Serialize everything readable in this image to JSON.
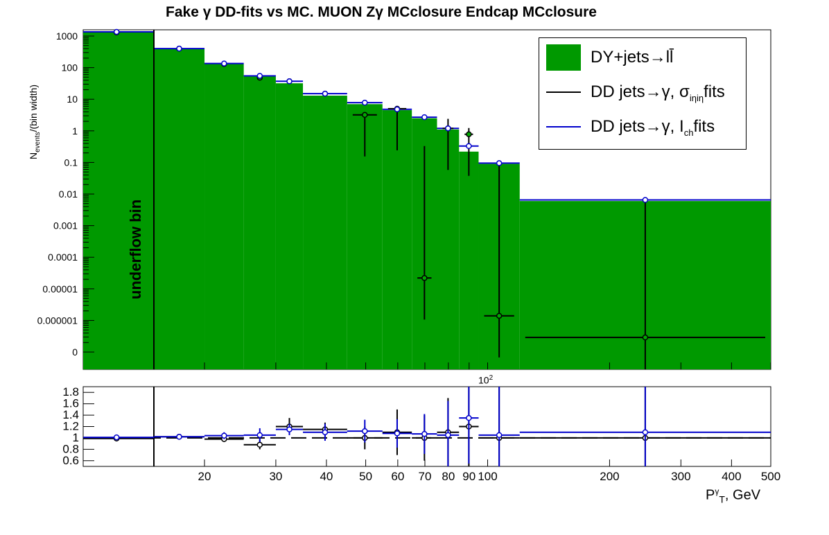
{
  "title": "Fake γ DD-fits vs MC. MUON Zγ MCclosure Endcap MCclosure",
  "ylabel": {
    "main": "N",
    "sub": "events",
    "rest": "/(bin width)"
  },
  "xlabel": {
    "p": "P",
    "sup": "γ",
    "sub": "T",
    "rest": ", GeV"
  },
  "underflow_label": "underflow bin",
  "x_exponent_label": "10",
  "x_exponent_sup": "2",
  "legend": [
    {
      "label": "DY+jets→ll̄",
      "kind": "fill",
      "color": "#009900"
    },
    {
      "label": "DD jets→γ, σ",
      "sub": "iηiη",
      "tail": " fits",
      "kind": "line",
      "color": "#000000"
    },
    {
      "label": "DD jets→γ, I",
      "sub": "ch",
      "tail": " fits",
      "kind": "line",
      "color": "#0000cc"
    }
  ],
  "chart_data": [
    {
      "type": "bar",
      "panel": "main",
      "y_scale": "log",
      "ytick_labels": [
        "0",
        "0.000001",
        "0.00001",
        "0.0001",
        "0.001",
        "0.01",
        "0.1",
        "1",
        "10",
        "100",
        "1000"
      ],
      "xtick_labels": [
        "20",
        "30",
        "40",
        "50",
        "60",
        "70",
        "80",
        "90",
        "100",
        "200",
        "300",
        "400",
        "500"
      ],
      "xlim": [
        12,
        500
      ],
      "bins": [
        [
          12,
          15
        ],
        [
          15,
          20
        ],
        [
          20,
          25
        ],
        [
          25,
          30
        ],
        [
          30,
          35
        ],
        [
          35,
          45
        ],
        [
          45,
          55
        ],
        [
          55,
          65
        ],
        [
          65,
          75
        ],
        [
          75,
          85
        ],
        [
          85,
          95
        ],
        [
          95,
          120
        ],
        [
          120,
          500
        ]
      ],
      "series": [
        {
          "name": "DY+jets→ll̄",
          "values": [
            1300,
            390,
            130,
            52,
            32,
            13,
            7,
            4.5,
            2.5,
            1.1,
            0.22,
            0.09,
            0.006
          ]
        },
        {
          "name": "DD jets→γ, σ iηiη fits",
          "values": [
            1300,
            400,
            130,
            48,
            37,
            15,
            3.2,
            5.0,
            2.2e-05,
            1.2,
            0.78,
            1.4e-06,
            2.9e-07
          ],
          "yerr_up": [
            0,
            0,
            0,
            0,
            0,
            0,
            0.6,
            0.8,
            0.33,
            1.2,
            0.45,
            0.1,
            0.0065
          ]
        },
        {
          "name": "DD jets→γ, I ch fits",
          "values": [
            1350,
            400,
            135,
            55,
            37,
            15,
            7.8,
            4.8,
            2.7,
            1.2,
            0.33,
            0.095,
            0.0065
          ],
          "yerr_up": [
            0,
            0,
            0,
            0,
            0,
            0,
            0,
            0,
            0,
            0,
            0,
            0,
            0
          ]
        }
      ]
    },
    {
      "type": "scatter",
      "panel": "ratio",
      "ylim": [
        0.5,
        1.9
      ],
      "ytick_labels": [
        "0.6",
        "0.8",
        "1",
        "1.2",
        "1.4",
        "1.6",
        "1.8"
      ],
      "reference_line": 1,
      "series": [
        {
          "name": "DD jets→γ, σ iηiη fits / MC",
          "values": [
            0.99,
            1.02,
            0.98,
            0.88,
            1.2,
            1.15,
            1.0,
            1.1,
            1.0,
            1.1,
            1.2,
            1.0,
            1.0
          ],
          "yerr": [
            0.02,
            0.03,
            0.05,
            0.08,
            0.15,
            0.12,
            0.2,
            0.4,
            0.4,
            0.6,
            1.0,
            1.0,
            1.0
          ]
        },
        {
          "name": "DD jets→γ, I ch fits / MC",
          "values": [
            1.01,
            1.02,
            1.04,
            1.05,
            1.15,
            1.1,
            1.12,
            1.08,
            1.07,
            1.05,
            1.35,
            1.05,
            1.1
          ],
          "yerr": [
            0.02,
            0.03,
            0.06,
            0.12,
            0.1,
            0.15,
            0.2,
            0.25,
            0.35,
            0.6,
            0.8,
            0.9,
            0.9
          ]
        }
      ]
    }
  ]
}
